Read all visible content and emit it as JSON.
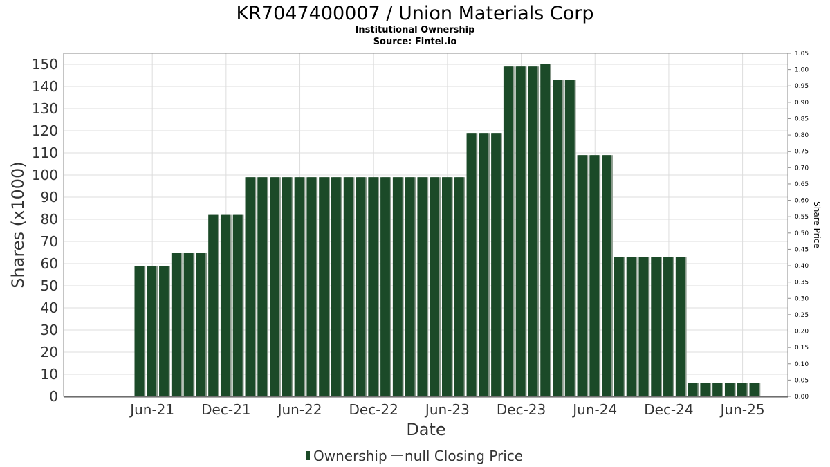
{
  "chart_data": {
    "type": "bar",
    "title": "KR7047400007 / Union Materials Corp",
    "subtitle_lines": [
      "Institutional Ownership",
      "Source: Fintel.io"
    ],
    "xlabel": "Date",
    "ylabel": "Shares (x1000)",
    "y2label": "Share Price",
    "ylim": [
      0,
      155
    ],
    "y_ticks": [
      0,
      10,
      20,
      30,
      40,
      50,
      60,
      70,
      80,
      90,
      100,
      110,
      120,
      130,
      140,
      150
    ],
    "y2lim": [
      0,
      1.05
    ],
    "y2_ticks": [
      "0.00",
      "0.05",
      "0.10",
      "0.15",
      "0.20",
      "0.25",
      "0.30",
      "0.35",
      "0.40",
      "0.45",
      "0.50",
      "0.55",
      "0.60",
      "0.65",
      "0.70",
      "0.75",
      "0.80",
      "0.85",
      "0.90",
      "0.95",
      "1.00",
      "1.05"
    ],
    "x_ticks": [
      "Jun-21",
      "Dec-21",
      "Jun-22",
      "Dec-22",
      "Jun-23",
      "Dec-23",
      "Jun-24",
      "Dec-24",
      "Jun-25"
    ],
    "x_tick_index": [
      1.5,
      7.5,
      13.5,
      19.5,
      25.5,
      31.5,
      37.5,
      43.5,
      49.5
    ],
    "grid": true,
    "legend_position": "bottom",
    "legend": [
      "Ownership",
      "null Closing Price"
    ],
    "series": [
      {
        "name": "Ownership",
        "color": "#1b4a28",
        "values": [
          59,
          59,
          59,
          65,
          65,
          65,
          82,
          82,
          82,
          99,
          99,
          99,
          99,
          99,
          99,
          99,
          99,
          99,
          99,
          99,
          99,
          99,
          99,
          99,
          99,
          99,
          99,
          119,
          119,
          119,
          149,
          149,
          149,
          150,
          143,
          143,
          109,
          109,
          109,
          63,
          63,
          63,
          63,
          63,
          63,
          6,
          6,
          6,
          6,
          6,
          6
        ]
      },
      {
        "name": "null Closing Price",
        "color": "#555555",
        "values": []
      }
    ]
  }
}
